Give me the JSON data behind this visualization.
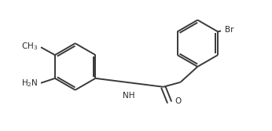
{
  "bg_color": "#ffffff",
  "line_color": "#3a3a3a",
  "text_color": "#2a2a2a",
  "line_width": 1.4,
  "figsize": [
    3.46,
    1.67
  ],
  "dpi": 100,
  "xlim": [
    0,
    3.46
  ],
  "ylim": [
    0,
    1.67
  ]
}
